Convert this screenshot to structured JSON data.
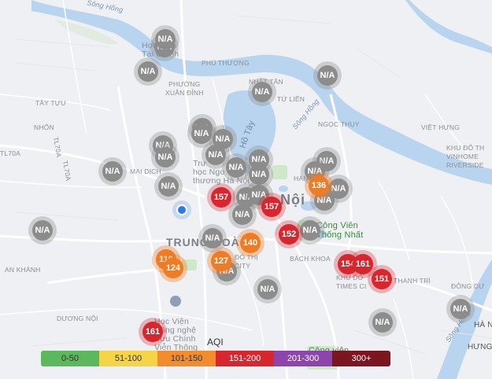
{
  "map": {
    "labels": {
      "song_hong_top": "Sông Hồng",
      "phu_thuong": "PHÚ THƯỢNG",
      "nhat_tan": "NHẬT TÂN",
      "tu_lien": "TỨ LIÊN",
      "tay_tuu": "TÂY TỰU",
      "phuong_xuan_dinh": "PHƯỜNG\nXUÂN ĐỈNH",
      "ngoc_thuy": "NGỌC THỤY",
      "viet_hung": "VIỆT HƯNG",
      "nhon": "NHỔN",
      "song_hong_mid": "Sông Hồng",
      "ho_tay": "Hồ Tây",
      "mai_dich": "MAI DỊCH",
      "tl70a_1": "TL70A",
      "tl70a_2": "TL70A",
      "kdt_vinhomes": "KHU ĐÔ TH\nVINHOME\nRIVERSIDE",
      "ha_noi": "Nội",
      "trung_hoa": "TRUNG HOÀ",
      "do_thi_city": "ĐÔ THỊ\nCITY",
      "bach_khoa": "BÁCH KHOA",
      "an_khanh": "AN KHÁNH",
      "times_city": "KHU ĐÔ\nTIMES CI",
      "thanh_tri": "THANH TRÌ",
      "dong_du": "ĐÔNG DƯ",
      "duong_noi": "DƯƠNG NỘI",
      "song_hong_bottom": "Sông Hồng",
      "ha_n": "HÀ N",
      "hung": "HƯNG",
      "hoc_vien_tai_chinh": "Học Viện\nTài Chính",
      "truong_dh_ngoai_thuong": "Trư\nhọc Ngo\nthương Hà Nội",
      "hoc_vien_buu_chinh": "Học Viện\nCông nghệ\nBưu Chính\nViễn Thông",
      "cong_vien_thong_nhat": "Công Viên\nThống Nhất",
      "cong_vien_bottom": "Công viên",
      "ha_label": "HÀN",
      "tl70a_left": "TL70A"
    },
    "markers": [
      {
        "aqi": "N/A",
        "level": "na"
      },
      {
        "aqi": "N/A",
        "level": "na"
      },
      {
        "aqi": "N/A",
        "level": "na"
      },
      {
        "aqi": "N/A",
        "level": "na"
      },
      {
        "aqi": "N/A",
        "level": "na"
      },
      {
        "aqi": "N/A",
        "level": "na"
      },
      {
        "aqi": "N/A",
        "level": "na"
      },
      {
        "aqi": "N/A",
        "level": "na"
      },
      {
        "aqi": "N/A",
        "level": "na"
      },
      {
        "aqi": "N/A",
        "level": "na"
      },
      {
        "aqi": "N/A",
        "level": "na"
      },
      {
        "aqi": "N/A",
        "level": "na"
      },
      {
        "aqi": "N/A",
        "level": "na"
      },
      {
        "aqi": "N/A",
        "level": "na"
      },
      {
        "aqi": "N/A",
        "level": "na"
      },
      {
        "aqi": "N/A",
        "level": "na"
      },
      {
        "aqi": "N/A",
        "level": "na"
      },
      {
        "aqi": "N/A",
        "level": "na"
      },
      {
        "aqi": "N/A",
        "level": "na"
      },
      {
        "aqi": "N/A",
        "level": "na"
      },
      {
        "aqi": "N/A",
        "level": "na"
      },
      {
        "aqi": "N/A",
        "level": "na"
      },
      {
        "aqi": "N/A",
        "level": "na"
      },
      {
        "aqi": "N/A",
        "level": "na"
      },
      {
        "aqi": "N/A",
        "level": "na"
      },
      {
        "aqi": "N/A",
        "level": "na"
      },
      {
        "aqi": "N/A",
        "level": "na"
      },
      {
        "aqi": "N/A",
        "level": "na"
      },
      {
        "aqi": "N/A",
        "level": "na"
      },
      {
        "aqi": "N/A",
        "level": "na"
      },
      {
        "aqi": "157",
        "level": "unhealthy"
      },
      {
        "aqi": "157",
        "level": "unhealthy"
      },
      {
        "aqi": "152",
        "level": "unhealthy"
      },
      {
        "aqi": "136",
        "level": "sensitive"
      },
      {
        "aqi": "140",
        "level": "sensitive"
      },
      {
        "aqi": "119",
        "level": "sensitive"
      },
      {
        "aqi": "124",
        "level": "sensitive"
      },
      {
        "aqi": "127",
        "level": "sensitive"
      },
      {
        "aqi": "154",
        "level": "unhealthy"
      },
      {
        "aqi": "161",
        "level": "unhealthy"
      },
      {
        "aqi": "151",
        "level": "unhealthy"
      },
      {
        "aqi": "161",
        "level": "unhealthy"
      }
    ]
  },
  "legend": {
    "title": "AQI",
    "items": [
      {
        "label": "0-50",
        "color": "#5cb85c",
        "text_color": "#333333"
      },
      {
        "label": "51-100",
        "color": "#f5d547",
        "text_color": "#333333"
      },
      {
        "label": "101-150",
        "color": "#f28c2c",
        "text_color": "#333333"
      },
      {
        "label": "151-200",
        "color": "#d7262e",
        "text_color": "#ffffff"
      },
      {
        "label": "201-300",
        "color": "#8e44ad",
        "text_color": "#ffffff"
      },
      {
        "label": "300+",
        "color": "#7b1520",
        "text_color": "#ffffff"
      }
    ]
  },
  "colors": {
    "background": "#eef0f3",
    "water": "#b9d4ee",
    "road_major": "#ffffff",
    "park": "#cfe8c8"
  }
}
